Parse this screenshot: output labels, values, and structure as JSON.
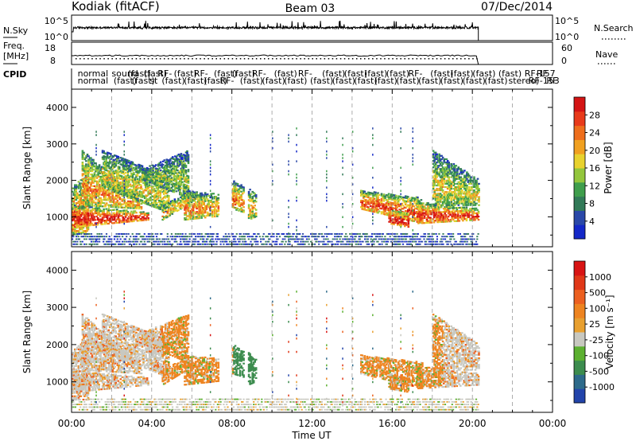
{
  "header": {
    "station": "Kodiak (fitACF)",
    "beam": "Beam 03",
    "date": "07/Dec/2014"
  },
  "chart_data": [
    {
      "panel": "noise",
      "type": "line",
      "left_label": "N.Sky",
      "right_label": "N.Search",
      "left_ticks": [
        "10^5",
        "10^0"
      ],
      "right_ticks": [
        "10^5",
        "10^0"
      ]
    },
    {
      "panel": "frequency",
      "type": "line",
      "left_label_lines": [
        "Freq.",
        "[MHz]"
      ],
      "right_label": "Nave",
      "left_ticks": [
        "18",
        "8"
      ],
      "right_ticks": [
        "60",
        "0"
      ]
    },
    {
      "panel": "cpid",
      "type": "table",
      "label": "CPID",
      "entries": [
        {
          "t": 0.3,
          "row": 0,
          "text": "normal"
        },
        {
          "t": 0.3,
          "row": 1,
          "text": "normal"
        },
        {
          "t": 2.0,
          "row": 0,
          "text": "sound"
        },
        {
          "t": 2.1,
          "row": 1,
          "text": "(fast)"
        },
        {
          "t": 2.8,
          "row": 0,
          "text": "(fast)"
        },
        {
          "t": 3.0,
          "row": 1,
          "text": "(fast)"
        },
        {
          "t": 3.6,
          "row": 0,
          "text": "(fast)"
        },
        {
          "t": 3.9,
          "row": 1,
          "text": "st"
        },
        {
          "t": 4.3,
          "row": 0,
          "text": "RF-"
        },
        {
          "t": 4.5,
          "row": 1,
          "text": "(fast)"
        },
        {
          "t": 5.1,
          "row": 0,
          "text": "(fast)"
        },
        {
          "t": 5.6,
          "row": 1,
          "text": "(fast)"
        },
        {
          "t": 6.1,
          "row": 0,
          "text": "RF-"
        },
        {
          "t": 6.6,
          "row": 1,
          "text": "(fast)"
        },
        {
          "t": 7.1,
          "row": 0,
          "text": "(fast)"
        },
        {
          "t": 7.4,
          "row": 1,
          "text": "RF-"
        },
        {
          "t": 8.0,
          "row": 0,
          "text": "(fast)"
        },
        {
          "t": 8.4,
          "row": 1,
          "text": "(fast)"
        },
        {
          "t": 9.0,
          "row": 0,
          "text": "RF-"
        },
        {
          "t": 9.5,
          "row": 1,
          "text": "(fast)"
        },
        {
          "t": 10.1,
          "row": 0,
          "text": "(fast)"
        },
        {
          "t": 10.6,
          "row": 1,
          "text": "(fast)"
        },
        {
          "t": 11.3,
          "row": 0,
          "text": "RF-"
        },
        {
          "t": 11.9,
          "row": 1,
          "text": "(fast)"
        },
        {
          "t": 12.5,
          "row": 0,
          "text": "(fast)"
        },
        {
          "t": 13.0,
          "row": 1,
          "text": "(fast)"
        },
        {
          "t": 13.6,
          "row": 0,
          "text": "(fast)"
        },
        {
          "t": 14.1,
          "row": 1,
          "text": "(fast)"
        },
        {
          "t": 14.6,
          "row": 0,
          "text": "(fast)"
        },
        {
          "t": 15.1,
          "row": 1,
          "text": "(fast)"
        },
        {
          "t": 15.7,
          "row": 0,
          "text": "(fast)"
        },
        {
          "t": 16.2,
          "row": 1,
          "text": "(fast)"
        },
        {
          "t": 16.8,
          "row": 0,
          "text": "RF-"
        },
        {
          "t": 17.3,
          "row": 1,
          "text": "(fast)"
        },
        {
          "t": 17.9,
          "row": 0,
          "text": "(fast)"
        },
        {
          "t": 18.4,
          "row": 1,
          "text": "(fast)"
        },
        {
          "t": 18.9,
          "row": 0,
          "text": "(fast)"
        },
        {
          "t": 19.5,
          "row": 1,
          "text": "(fast)"
        },
        {
          "t": 20.0,
          "row": 0,
          "text": "(fast)"
        },
        {
          "t": 20.6,
          "row": 1,
          "text": "(fast)"
        },
        {
          "t": 21.3,
          "row": 0,
          "text": "(fast)"
        },
        {
          "t": 21.8,
          "row": 1,
          "text": "stereo)"
        },
        {
          "t": 22.6,
          "row": 0,
          "text": "RF-157"
        },
        {
          "t": 23.2,
          "row": 0,
          "text": "RF"
        },
        {
          "t": 22.8,
          "row": 1,
          "text": "RF-153"
        },
        {
          "t": 23.7,
          "row": 1,
          "text": "RF"
        }
      ]
    },
    {
      "panel": "power",
      "type": "heatmap",
      "ylabel": "Slant Range [km]",
      "xlim": [
        0,
        24
      ],
      "ylim": [
        180,
        4500
      ],
      "yticks": [
        1000,
        2000,
        3000,
        4000
      ],
      "colorbar": {
        "label": "Power [dB]",
        "ticks": [
          "28",
          "24",
          "20",
          "16",
          "12",
          "8",
          "4"
        ],
        "colors": [
          "#1428c8",
          "#2a48a8",
          "#327a58",
          "#3f9e4c",
          "#93c63c",
          "#e8d22e",
          "#f0a020",
          "#ee6e1c",
          "#e83a1a",
          "#d41414"
        ]
      }
    },
    {
      "panel": "velocity",
      "type": "heatmap",
      "ylabel": "Slant Range [km]",
      "xlabel": "Time UT",
      "xlim": [
        0,
        24
      ],
      "ylim": [
        180,
        4500
      ],
      "yticks": [
        1000,
        2000,
        3000,
        4000
      ],
      "xticks": [
        "00:00",
        "04:00",
        "08:00",
        "12:00",
        "16:00",
        "20:00",
        "00:00"
      ],
      "colorbar": {
        "label": "Velocity [m s⁻¹]",
        "ticks": [
          "1000",
          "500",
          "100",
          "25",
          "-25",
          "-100",
          "-500",
          "-1000"
        ],
        "colors": [
          "#2244aa",
          "#2d6a8a",
          "#3c8c4e",
          "#5cb030",
          "#c8c8c0",
          "#e8a030",
          "#ee8420",
          "#ec6020",
          "#e03818",
          "#d81414"
        ]
      }
    }
  ]
}
